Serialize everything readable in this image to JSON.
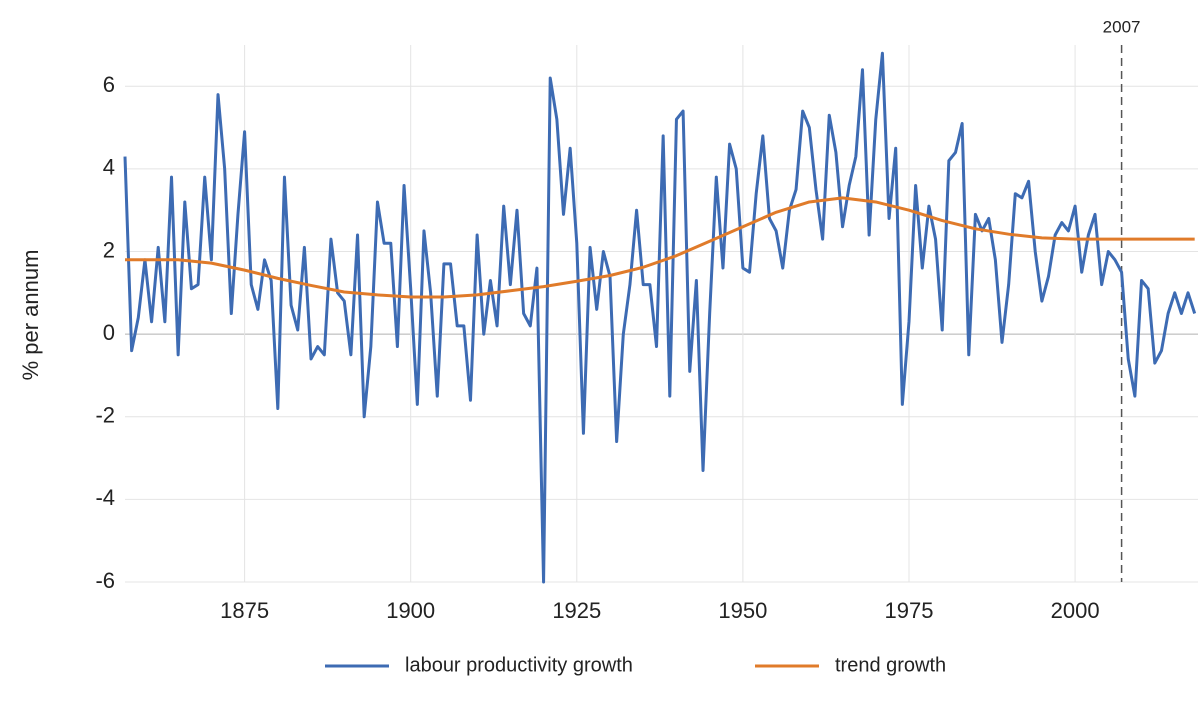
{
  "chart_data": {
    "type": "line",
    "y_label": "% per annum",
    "xlim": [
      1857,
      2018.5
    ],
    "ylim": [
      -6,
      7
    ],
    "xticks": [
      1875,
      1900,
      1925,
      1950,
      1975,
      2000
    ],
    "yticks": [
      -6,
      -4,
      -2,
      0,
      2,
      4,
      6
    ],
    "grid": true,
    "legend": "bottom",
    "marker_line": {
      "x": 2007,
      "label": "2007",
      "color": "#555555"
    },
    "series": [
      {
        "name": "labour productivity growth",
        "color": "#3d6bb3",
        "x": [
          1857,
          1858,
          1859,
          1860,
          1861,
          1862,
          1863,
          1864,
          1865,
          1866,
          1867,
          1868,
          1869,
          1870,
          1871,
          1872,
          1873,
          1874,
          1875,
          1876,
          1877,
          1878,
          1879,
          1880,
          1881,
          1882,
          1883,
          1884,
          1885,
          1886,
          1887,
          1888,
          1889,
          1890,
          1891,
          1892,
          1893,
          1894,
          1895,
          1896,
          1897,
          1898,
          1899,
          1900,
          1901,
          1902,
          1903,
          1904,
          1905,
          1906,
          1907,
          1908,
          1909,
          1910,
          1911,
          1912,
          1913,
          1914,
          1915,
          1916,
          1917,
          1918,
          1919,
          1920,
          1921,
          1922,
          1923,
          1924,
          1925,
          1926,
          1927,
          1928,
          1929,
          1930,
          1931,
          1932,
          1933,
          1934,
          1935,
          1936,
          1937,
          1938,
          1939,
          1940,
          1941,
          1942,
          1943,
          1944,
          1945,
          1946,
          1947,
          1948,
          1949,
          1950,
          1951,
          1952,
          1953,
          1954,
          1955,
          1956,
          1957,
          1958,
          1959,
          1960,
          1961,
          1962,
          1963,
          1964,
          1965,
          1966,
          1967,
          1968,
          1969,
          1970,
          1971,
          1972,
          1973,
          1974,
          1975,
          1976,
          1977,
          1978,
          1979,
          1980,
          1981,
          1982,
          1983,
          1984,
          1985,
          1986,
          1987,
          1988,
          1989,
          1990,
          1991,
          1992,
          1993,
          1994,
          1995,
          1996,
          1997,
          1998,
          1999,
          2000,
          2001,
          2002,
          2003,
          2004,
          2005,
          2006,
          2007,
          2008,
          2009,
          2010,
          2011,
          2012,
          2013,
          2014,
          2015,
          2016,
          2017,
          2018
        ],
        "values": [
          4.3,
          -0.4,
          0.4,
          1.8,
          0.3,
          2.1,
          0.3,
          3.8,
          -0.5,
          3.2,
          1.1,
          1.2,
          3.8,
          1.8,
          5.8,
          4.0,
          0.5,
          2.9,
          4.9,
          1.2,
          0.6,
          1.8,
          1.3,
          -1.8,
          3.8,
          0.7,
          0.1,
          2.1,
          -0.6,
          -0.3,
          -0.5,
          2.3,
          1.0,
          0.8,
          -0.5,
          2.4,
          -2.0,
          -0.3,
          3.2,
          2.2,
          2.2,
          -0.3,
          3.6,
          1.1,
          -1.7,
          2.5,
          1.0,
          -1.5,
          1.7,
          1.7,
          0.2,
          0.2,
          -1.6,
          2.4,
          0.0,
          1.3,
          0.2,
          3.1,
          1.2,
          3.0,
          0.5,
          0.2,
          1.6,
          -6.0,
          6.2,
          5.2,
          2.9,
          4.5,
          2.2,
          -2.4,
          2.1,
          0.6,
          2.0,
          1.4,
          -2.6,
          0.0,
          1.2,
          3.0,
          1.2,
          1.2,
          -0.3,
          4.8,
          -1.5,
          5.2,
          5.4,
          -0.9,
          1.3,
          -3.3,
          0.5,
          3.8,
          1.6,
          4.6,
          4.0,
          1.6,
          1.5,
          3.4,
          4.8,
          2.8,
          2.5,
          1.6,
          3.0,
          3.5,
          5.4,
          5.0,
          3.5,
          2.3,
          5.3,
          4.4,
          2.6,
          3.6,
          4.3,
          6.4,
          2.4,
          5.2,
          6.8,
          2.8,
          4.5,
          -1.7,
          0.3,
          3.6,
          1.6,
          3.1,
          2.3,
          0.1,
          4.2,
          4.4,
          5.1,
          -0.5,
          2.9,
          2.5,
          2.8,
          1.8,
          -0.2,
          1.2,
          3.4,
          3.3,
          3.7,
          2.0,
          0.8,
          1.4,
          2.4,
          2.7,
          2.5,
          3.1,
          1.5,
          2.4,
          2.9,
          1.2,
          2.0,
          1.8,
          1.5,
          -0.6,
          -1.5,
          1.3,
          1.1,
          -0.7,
          -0.4,
          0.5,
          1.0,
          0.5,
          1.0,
          0.5
        ]
      },
      {
        "name": "trend growth",
        "color": "#e07b2a",
        "x": [
          1857,
          1860,
          1865,
          1870,
          1875,
          1880,
          1885,
          1890,
          1895,
          1900,
          1905,
          1910,
          1915,
          1920,
          1925,
          1930,
          1935,
          1940,
          1945,
          1950,
          1955,
          1960,
          1965,
          1970,
          1975,
          1980,
          1985,
          1990,
          1995,
          2000,
          2005,
          2010,
          2015,
          2018
        ],
        "values": [
          1.8,
          1.8,
          1.8,
          1.72,
          1.55,
          1.35,
          1.18,
          1.02,
          0.95,
          0.9,
          0.9,
          0.95,
          1.05,
          1.15,
          1.28,
          1.42,
          1.62,
          1.9,
          2.25,
          2.6,
          2.95,
          3.2,
          3.3,
          3.2,
          3.0,
          2.75,
          2.55,
          2.42,
          2.33,
          2.3,
          2.3,
          2.3,
          2.3,
          2.3
        ]
      }
    ]
  }
}
